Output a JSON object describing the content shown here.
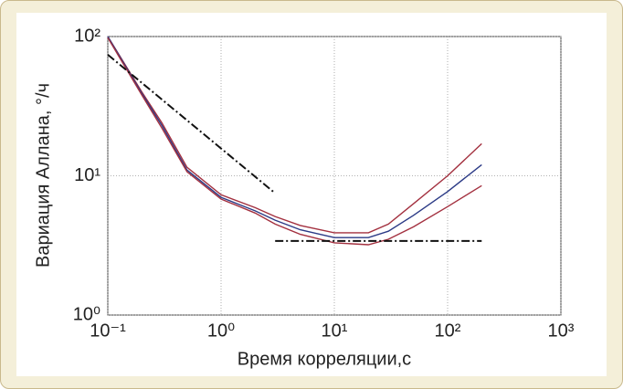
{
  "chart_data": {
    "type": "line",
    "log_x": true,
    "log_y": true,
    "grid": true,
    "xlabel": "Время корреляции,с",
    "ylabel": "Вариация Аллана, °/ч",
    "xlim": [
      0.1,
      1000
    ],
    "ylim": [
      1,
      100
    ],
    "xticks": [
      {
        "value": 0.1,
        "label": "10⁻¹"
      },
      {
        "value": 1,
        "label": "10⁰"
      },
      {
        "value": 10,
        "label": "10¹"
      },
      {
        "value": 100,
        "label": "10²"
      },
      {
        "value": 1000,
        "label": "10³"
      }
    ],
    "yticks": [
      {
        "value": 1,
        "label": "10⁰"
      },
      {
        "value": 10,
        "label": "10¹"
      },
      {
        "value": 100,
        "label": "10²"
      }
    ],
    "series": [
      {
        "color": "#a3303f",
        "dash": "solid",
        "x": [
          0.1,
          0.2,
          0.3,
          0.5,
          1,
          2,
          3,
          5,
          10,
          20,
          30,
          50,
          100,
          200
        ],
        "values": [
          100,
          40,
          24,
          11.5,
          7.3,
          5.9,
          5.1,
          4.4,
          3.9,
          3.9,
          4.5,
          6.3,
          10,
          17
        ]
      },
      {
        "color": "#2b3a86",
        "dash": "solid",
        "x": [
          0.1,
          0.2,
          0.3,
          0.5,
          1,
          2,
          3,
          5,
          10,
          20,
          30,
          50,
          100,
          200
        ],
        "values": [
          100,
          39,
          23,
          11,
          7.0,
          5.6,
          4.8,
          4.1,
          3.6,
          3.6,
          4.0,
          5.2,
          7.7,
          12
        ]
      },
      {
        "color": "#a3303f",
        "dash": "solid",
        "x": [
          0.1,
          0.2,
          0.3,
          0.5,
          1,
          2,
          3,
          5,
          10,
          20,
          30,
          50,
          100,
          200
        ],
        "values": [
          98,
          38,
          22,
          10.7,
          6.8,
          5.4,
          4.5,
          3.8,
          3.3,
          3.2,
          3.5,
          4.3,
          6.0,
          8.5
        ]
      },
      {
        "color": "#111111",
        "dash": "dashdot",
        "x": [
          0.1,
          3
        ],
        "values": [
          74,
          7.5
        ]
      },
      {
        "color": "#111111",
        "dash": "dashdot",
        "x": [
          3,
          200
        ],
        "values": [
          3.4,
          3.4
        ]
      }
    ]
  }
}
